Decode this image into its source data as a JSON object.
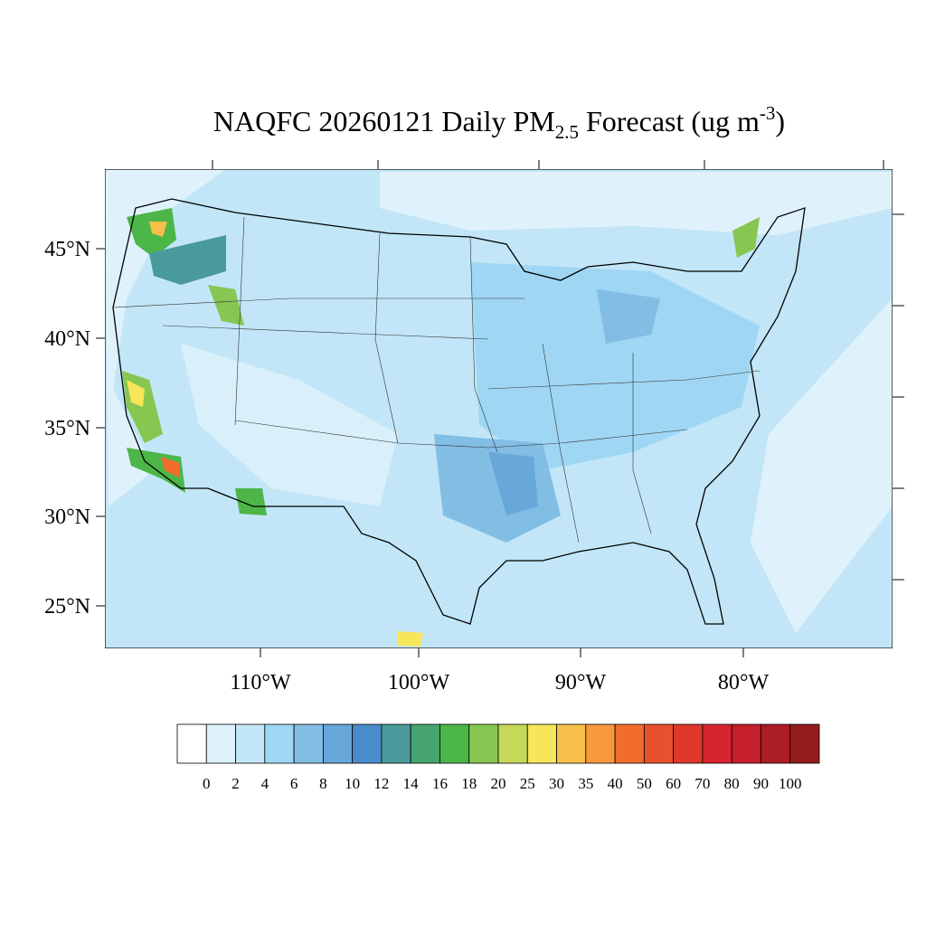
{
  "map": {
    "title": {
      "main": "NAQFC 20260121 Daily PM",
      "sub": "2.5",
      "mid": " Forecast (ug m",
      "sup": "-3",
      "end": ")"
    },
    "lat_labels": [
      "45°N",
      "40°N",
      "35°N",
      "30°N",
      "25°N"
    ],
    "lon_labels": [
      "110°W",
      "100°W",
      "90°W",
      "80°W"
    ],
    "colorbar": {
      "levels": [
        0,
        2,
        4,
        6,
        8,
        10,
        12,
        14,
        16,
        18,
        20,
        25,
        30,
        35,
        40,
        50,
        60,
        70,
        80,
        90,
        100
      ],
      "colors": [
        "#ffffff",
        "#dff2fb",
        "#c2e6f7",
        "#9fd6f3",
        "#82bde4",
        "#67a7da",
        "#4a8ccb",
        "#4a9a9b",
        "#47a56f",
        "#4cb649",
        "#86c651",
        "#c5d85a",
        "#f7e65a",
        "#f8bf4a",
        "#f69a3d",
        "#f26c2e",
        "#e8512d",
        "#de382a",
        "#d62430",
        "#c41f2b",
        "#ad1d24",
        "#941b1b"
      ]
    }
  }
}
